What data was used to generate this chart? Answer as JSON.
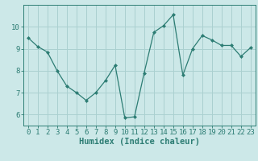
{
  "x": [
    0,
    1,
    2,
    3,
    4,
    5,
    6,
    7,
    8,
    9,
    10,
    11,
    12,
    13,
    14,
    15,
    16,
    17,
    18,
    19,
    20,
    21,
    22,
    23
  ],
  "y": [
    9.5,
    9.1,
    8.85,
    8.0,
    7.3,
    7.0,
    6.65,
    7.0,
    7.55,
    8.25,
    5.85,
    5.9,
    7.9,
    9.75,
    10.05,
    10.55,
    7.8,
    9.0,
    9.6,
    9.4,
    9.15,
    9.15,
    8.65,
    9.05
  ],
  "line_color": "#2d7d74",
  "marker": "D",
  "marker_size": 2.0,
  "bg_color": "#cce8e8",
  "grid_color": "#aad0d0",
  "axis_color": "#2d7d74",
  "tick_color": "#2d7d74",
  "xlabel": "Humidex (Indice chaleur)",
  "xlim": [
    -0.5,
    23.5
  ],
  "ylim": [
    5.5,
    11.0
  ],
  "yticks": [
    6,
    7,
    8,
    9,
    10
  ],
  "xticks": [
    0,
    1,
    2,
    3,
    4,
    5,
    6,
    7,
    8,
    9,
    10,
    11,
    12,
    13,
    14,
    15,
    16,
    17,
    18,
    19,
    20,
    21,
    22,
    23
  ],
  "tick_fontsize": 6.5,
  "xlabel_fontsize": 7.5
}
